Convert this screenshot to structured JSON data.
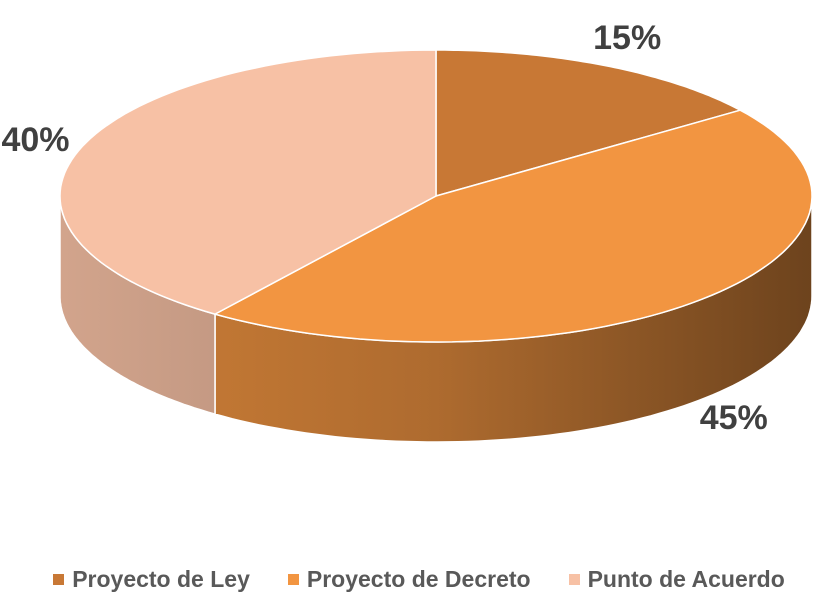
{
  "chart_data": {
    "type": "pie",
    "categories": [
      "Proyecto de Ley",
      "Proyecto de Decreto",
      "Punto de Acuerdo"
    ],
    "values": [
      15,
      45,
      40
    ],
    "value_labels": [
      "15%",
      "45%",
      "40%"
    ],
    "colors": [
      "#c87835",
      "#f29541",
      "#f7c1a5"
    ],
    "legend": "bottom"
  }
}
